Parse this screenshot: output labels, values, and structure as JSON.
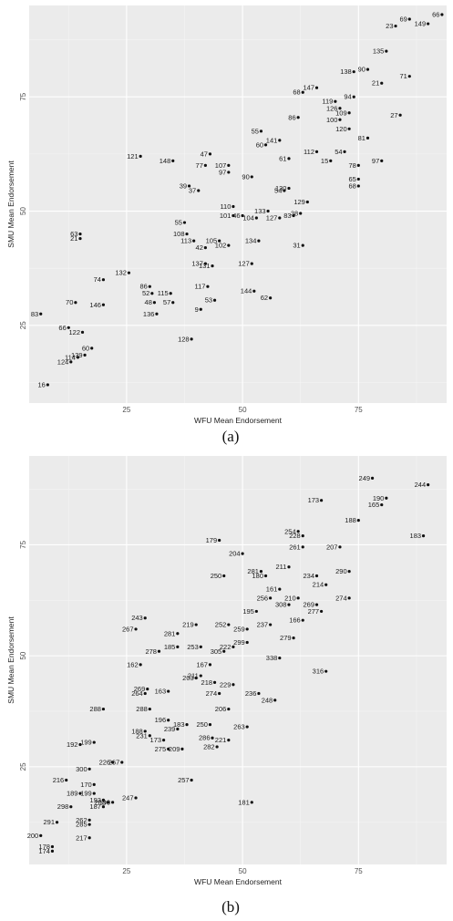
{
  "chart_data": [
    {
      "type": "scatter",
      "caption": "(a)",
      "xlabel": "WFU Mean Endorsement",
      "ylabel": "SMU Mean Endorsement",
      "xlim": [
        4,
        94
      ],
      "ylim": [
        8,
        95
      ],
      "xticks": [
        25,
        50,
        75
      ],
      "yticks": [
        25,
        50,
        75
      ],
      "xtick_labels": [
        "25",
        "50",
        "75"
      ],
      "ytick_labels": [
        "25",
        "50",
        "75"
      ],
      "grid": true,
      "points": [
        {
          "label": "16",
          "x": 8,
          "y": 12
        },
        {
          "label": "124",
          "x": 13,
          "y": 17
        },
        {
          "label": "114",
          "x": 14.5,
          "y": 18
        },
        {
          "label": "139",
          "x": 16,
          "y": 18.5
        },
        {
          "label": "60",
          "x": 17.5,
          "y": 20
        },
        {
          "label": "122",
          "x": 15.5,
          "y": 23.5
        },
        {
          "label": "66",
          "x": 12.5,
          "y": 24.5
        },
        {
          "label": "83",
          "x": 6.5,
          "y": 27.5
        },
        {
          "label": "70",
          "x": 14,
          "y": 30
        },
        {
          "label": "146",
          "x": 20,
          "y": 29.5
        },
        {
          "label": "74",
          "x": 20,
          "y": 35
        },
        {
          "label": "132",
          "x": 25.5,
          "y": 36.5
        },
        {
          "label": "86",
          "x": 30,
          "y": 33.5
        },
        {
          "label": "52",
          "x": 30.5,
          "y": 32
        },
        {
          "label": "115",
          "x": 34.5,
          "y": 32
        },
        {
          "label": "48",
          "x": 31,
          "y": 30
        },
        {
          "label": "57",
          "x": 35,
          "y": 30
        },
        {
          "label": "136",
          "x": 31.5,
          "y": 27.5
        },
        {
          "label": "9",
          "x": 41,
          "y": 28.5
        },
        {
          "label": "117",
          "x": 42.5,
          "y": 33.5
        },
        {
          "label": "53",
          "x": 44,
          "y": 30.5
        },
        {
          "label": "144",
          "x": 52.5,
          "y": 32.5
        },
        {
          "label": "62",
          "x": 56,
          "y": 31
        },
        {
          "label": "128",
          "x": 39,
          "y": 22
        },
        {
          "label": "21",
          "x": 15,
          "y": 44
        },
        {
          "label": "63",
          "x": 15,
          "y": 45
        },
        {
          "label": "55",
          "x": 37.5,
          "y": 47.5
        },
        {
          "label": "108",
          "x": 38,
          "y": 45
        },
        {
          "label": "113",
          "x": 39.5,
          "y": 43.5
        },
        {
          "label": "42",
          "x": 42,
          "y": 42
        },
        {
          "label": "137",
          "x": 42,
          "y": 38.5
        },
        {
          "label": "131",
          "x": 43.5,
          "y": 38
        },
        {
          "label": "127",
          "x": 52,
          "y": 38.5
        },
        {
          "label": "102",
          "x": 47,
          "y": 42.5
        },
        {
          "label": "105",
          "x": 45,
          "y": 43.5
        },
        {
          "label": "134",
          "x": 53.5,
          "y": 43.5
        },
        {
          "label": "31",
          "x": 63,
          "y": 42.5
        },
        {
          "label": "110",
          "x": 48,
          "y": 51
        },
        {
          "label": "101",
          "x": 48,
          "y": 49
        },
        {
          "label": "46",
          "x": 50,
          "y": 49
        },
        {
          "label": "104",
          "x": 53,
          "y": 48.5
        },
        {
          "label": "133",
          "x": 55.5,
          "y": 50
        },
        {
          "label": "127",
          "x": 58,
          "y": 48.5
        },
        {
          "label": "83",
          "x": 61,
          "y": 49
        },
        {
          "label": "38",
          "x": 62.5,
          "y": 49.5
        },
        {
          "label": "39",
          "x": 38.5,
          "y": 55.5
        },
        {
          "label": "37",
          "x": 40.5,
          "y": 54.5
        },
        {
          "label": "54",
          "x": 59,
          "y": 54.5
        },
        {
          "label": "130",
          "x": 60,
          "y": 55
        },
        {
          "label": "129",
          "x": 64,
          "y": 52
        },
        {
          "label": "121",
          "x": 28,
          "y": 62
        },
        {
          "label": "148",
          "x": 35,
          "y": 61
        },
        {
          "label": "47",
          "x": 43,
          "y": 62.5
        },
        {
          "label": "77",
          "x": 42,
          "y": 60
        },
        {
          "label": "107",
          "x": 47,
          "y": 60
        },
        {
          "label": "97",
          "x": 47,
          "y": 58.5
        },
        {
          "label": "90",
          "x": 52,
          "y": 57.5
        },
        {
          "label": "55",
          "x": 54,
          "y": 67.5
        },
        {
          "label": "141",
          "x": 58,
          "y": 65.5
        },
        {
          "label": "60",
          "x": 55,
          "y": 64.5
        },
        {
          "label": "61",
          "x": 60,
          "y": 61.5
        },
        {
          "label": "112",
          "x": 66,
          "y": 63
        },
        {
          "label": "54",
          "x": 72,
          "y": 63
        },
        {
          "label": "15",
          "x": 69,
          "y": 61
        },
        {
          "label": "78",
          "x": 75,
          "y": 60
        },
        {
          "label": "97",
          "x": 80,
          "y": 61
        },
        {
          "label": "65",
          "x": 75,
          "y": 57
        },
        {
          "label": "68",
          "x": 75,
          "y": 55.5
        },
        {
          "label": "86",
          "x": 62,
          "y": 70.5
        },
        {
          "label": "68",
          "x": 63,
          "y": 76
        },
        {
          "label": "147",
          "x": 66,
          "y": 77
        },
        {
          "label": "126",
          "x": 71,
          "y": 72.5
        },
        {
          "label": "94",
          "x": 74,
          "y": 75
        },
        {
          "label": "109",
          "x": 73,
          "y": 71.5
        },
        {
          "label": "100",
          "x": 71,
          "y": 70
        },
        {
          "label": "81",
          "x": 77,
          "y": 66
        },
        {
          "label": "27",
          "x": 84,
          "y": 71
        },
        {
          "label": "21",
          "x": 80,
          "y": 78
        },
        {
          "label": "138",
          "x": 74,
          "y": 80.5
        },
        {
          "label": "90",
          "x": 77,
          "y": 81
        },
        {
          "label": "71",
          "x": 86,
          "y": 79.5
        },
        {
          "label": "135",
          "x": 81,
          "y": 85
        },
        {
          "label": "23",
          "x": 83,
          "y": 90.5
        },
        {
          "label": "69",
          "x": 86,
          "y": 92
        },
        {
          "label": "149",
          "x": 90,
          "y": 91
        },
        {
          "label": "66",
          "x": 93,
          "y": 93
        },
        {
          "label": "119",
          "x": 70,
          "y": 74
        },
        {
          "label": "120",
          "x": 73,
          "y": 68
        }
      ]
    },
    {
      "type": "scatter",
      "caption": "(b)",
      "xlabel": "WFU Mean Endorsement",
      "ylabel": "SMU Mean Endorsement",
      "xlim": [
        4,
        94
      ],
      "ylim": [
        3,
        95
      ],
      "xticks": [
        25,
        50,
        75
      ],
      "yticks": [
        25,
        50,
        75
      ],
      "xtick_labels": [
        "25",
        "50",
        "75"
      ],
      "ytick_labels": [
        "25",
        "50",
        "75"
      ],
      "grid": true,
      "points": [
        {
          "label": "174",
          "x": 9,
          "y": 6
        },
        {
          "label": "178",
          "x": 9,
          "y": 7
        },
        {
          "label": "200",
          "x": 6.5,
          "y": 9.5
        },
        {
          "label": "217",
          "x": 17,
          "y": 9
        },
        {
          "label": "291",
          "x": 10,
          "y": 12.5
        },
        {
          "label": "262",
          "x": 17,
          "y": 13
        },
        {
          "label": "285",
          "x": 17,
          "y": 12
        },
        {
          "label": "298",
          "x": 13,
          "y": 16
        },
        {
          "label": "189",
          "x": 15,
          "y": 19
        },
        {
          "label": "199",
          "x": 18,
          "y": 19
        },
        {
          "label": "193",
          "x": 20,
          "y": 17.5
        },
        {
          "label": "208",
          "x": 21,
          "y": 17
        },
        {
          "label": "187",
          "x": 20,
          "y": 16
        },
        {
          "label": "190",
          "x": 22,
          "y": 17
        },
        {
          "label": "247",
          "x": 27,
          "y": 18
        },
        {
          "label": "170",
          "x": 18,
          "y": 21
        },
        {
          "label": "216",
          "x": 12,
          "y": 22
        },
        {
          "label": "300",
          "x": 17,
          "y": 24.5
        },
        {
          "label": "226",
          "x": 22,
          "y": 26
        },
        {
          "label": "267",
          "x": 24,
          "y": 26
        },
        {
          "label": "192",
          "x": 15,
          "y": 30
        },
        {
          "label": "199",
          "x": 18,
          "y": 30.5
        },
        {
          "label": "257",
          "x": 39,
          "y": 22
        },
        {
          "label": "181",
          "x": 52,
          "y": 17
        },
        {
          "label": "288",
          "x": 20,
          "y": 38
        },
        {
          "label": "188",
          "x": 29,
          "y": 33
        },
        {
          "label": "231",
          "x": 30,
          "y": 32
        },
        {
          "label": "173",
          "x": 33,
          "y": 31
        },
        {
          "label": "275",
          "x": 34,
          "y": 29
        },
        {
          "label": "209",
          "x": 37,
          "y": 29
        },
        {
          "label": "239",
          "x": 36,
          "y": 33.5
        },
        {
          "label": "183",
          "x": 38,
          "y": 34.5
        },
        {
          "label": "196",
          "x": 34,
          "y": 35.5
        },
        {
          "label": "286",
          "x": 43.5,
          "y": 31.5
        },
        {
          "label": "282",
          "x": 44.5,
          "y": 29.5
        },
        {
          "label": "221",
          "x": 47,
          "y": 31
        },
        {
          "label": "250",
          "x": 43,
          "y": 34.5
        },
        {
          "label": "263",
          "x": 51,
          "y": 34
        },
        {
          "label": "206",
          "x": 47,
          "y": 38
        },
        {
          "label": "248",
          "x": 57,
          "y": 40
        },
        {
          "label": "236",
          "x": 53.5,
          "y": 41.5
        },
        {
          "label": "288",
          "x": 30,
          "y": 38
        },
        {
          "label": "264",
          "x": 29,
          "y": 41.5
        },
        {
          "label": "269",
          "x": 29.5,
          "y": 42.5
        },
        {
          "label": "163",
          "x": 34,
          "y": 42
        },
        {
          "label": "203",
          "x": 40,
          "y": 45
        },
        {
          "label": "211",
          "x": 41,
          "y": 45.5
        },
        {
          "label": "218",
          "x": 44,
          "y": 44
        },
        {
          "label": "274",
          "x": 45,
          "y": 41.5
        },
        {
          "label": "229",
          "x": 48,
          "y": 43.5
        },
        {
          "label": "167",
          "x": 43,
          "y": 48
        },
        {
          "label": "162",
          "x": 28,
          "y": 48
        },
        {
          "label": "278",
          "x": 32,
          "y": 51
        },
        {
          "label": "185",
          "x": 36,
          "y": 52
        },
        {
          "label": "253",
          "x": 41,
          "y": 52
        },
        {
          "label": "305",
          "x": 46,
          "y": 51
        },
        {
          "label": "222",
          "x": 48,
          "y": 52
        },
        {
          "label": "299",
          "x": 51,
          "y": 53
        },
        {
          "label": "259",
          "x": 51,
          "y": 56
        },
        {
          "label": "281",
          "x": 36,
          "y": 55
        },
        {
          "label": "219",
          "x": 40,
          "y": 57
        },
        {
          "label": "252",
          "x": 47,
          "y": 57
        },
        {
          "label": "195",
          "x": 53,
          "y": 60
        },
        {
          "label": "256",
          "x": 56,
          "y": 63
        },
        {
          "label": "308",
          "x": 60,
          "y": 61.5
        },
        {
          "label": "210",
          "x": 62,
          "y": 63
        },
        {
          "label": "166",
          "x": 63,
          "y": 58
        },
        {
          "label": "338",
          "x": 58,
          "y": 49.5
        },
        {
          "label": "279",
          "x": 61,
          "y": 54
        },
        {
          "label": "237",
          "x": 56,
          "y": 57
        },
        {
          "label": "243",
          "x": 29,
          "y": 58.5
        },
        {
          "label": "267",
          "x": 27,
          "y": 56
        },
        {
          "label": "316",
          "x": 68,
          "y": 46.5
        },
        {
          "label": "277",
          "x": 67,
          "y": 60
        },
        {
          "label": "269",
          "x": 66,
          "y": 61.5
        },
        {
          "label": "274",
          "x": 73,
          "y": 63
        },
        {
          "label": "214",
          "x": 68,
          "y": 66
        },
        {
          "label": "161",
          "x": 58,
          "y": 65
        },
        {
          "label": "180",
          "x": 55,
          "y": 68
        },
        {
          "label": "250",
          "x": 46,
          "y": 68
        },
        {
          "label": "281",
          "x": 54,
          "y": 69
        },
        {
          "label": "211",
          "x": 60,
          "y": 70
        },
        {
          "label": "234",
          "x": 66,
          "y": 68
        },
        {
          "label": "290",
          "x": 73,
          "y": 69
        },
        {
          "label": "204",
          "x": 50,
          "y": 73
        },
        {
          "label": "179",
          "x": 45,
          "y": 76
        },
        {
          "label": "261",
          "x": 63,
          "y": 74.5
        },
        {
          "label": "228",
          "x": 63,
          "y": 77
        },
        {
          "label": "254",
          "x": 62,
          "y": 78
        },
        {
          "label": "207",
          "x": 71,
          "y": 74.5
        },
        {
          "label": "188",
          "x": 75,
          "y": 80.5
        },
        {
          "label": "173",
          "x": 67,
          "y": 85
        },
        {
          "label": "165",
          "x": 80,
          "y": 84
        },
        {
          "label": "190",
          "x": 81,
          "y": 85.5
        },
        {
          "label": "249",
          "x": 78,
          "y": 90
        },
        {
          "label": "244",
          "x": 90,
          "y": 88.5
        },
        {
          "label": "183",
          "x": 89,
          "y": 77
        }
      ]
    }
  ]
}
